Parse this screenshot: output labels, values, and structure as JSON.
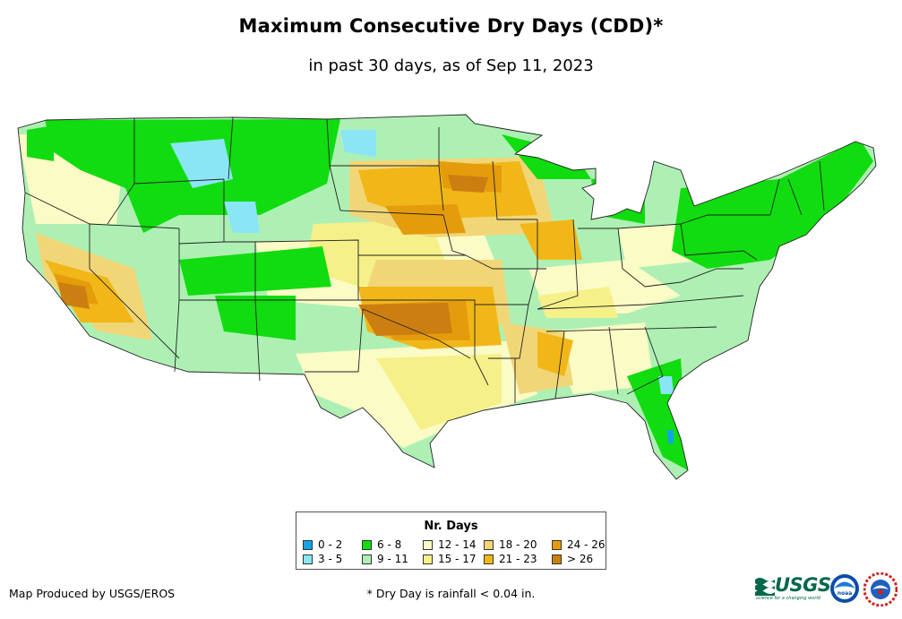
{
  "title": "Maximum Consecutive Dry Days (CDD)*",
  "subtitle": "in past 30 days, as of Sep 11, 2023",
  "legend": {
    "title": "Nr. Days",
    "items": [
      {
        "label": "0 - 2",
        "color": "#12a5e8"
      },
      {
        "label": "3 - 5",
        "color": "#8ae6f5"
      },
      {
        "label": "6 - 8",
        "color": "#10dc10"
      },
      {
        "label": "9 - 11",
        "color": "#aef0b4"
      },
      {
        "label": "12 - 14",
        "color": "#fbfbc5"
      },
      {
        "label": "15 - 17",
        "color": "#f6f089"
      },
      {
        "label": "18 - 20",
        "color": "#f1d678"
      },
      {
        "label": "21 - 23",
        "color": "#f1b719"
      },
      {
        "label": "24 - 26",
        "color": "#e59c0c"
      },
      {
        "label": "> 26",
        "color": "#cc7f10"
      }
    ]
  },
  "credit": "Map Produced by USGS/EROS",
  "footnote": "* Dry Day is rainfall < 0.04 in.",
  "logos": {
    "usgs_text": "USGS",
    "usgs_tagline": "science for a changing world",
    "noaa_text": "noaa"
  }
}
